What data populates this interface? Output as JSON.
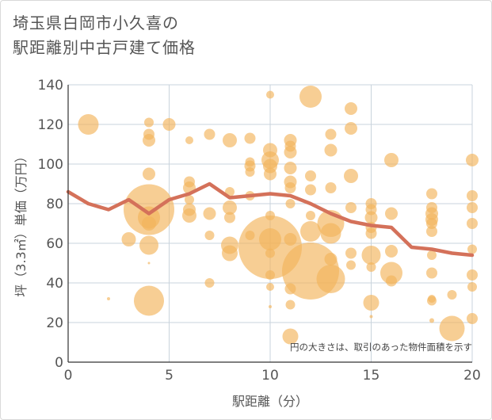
{
  "chart_data": {
    "type": "scatter",
    "title_line1": "埼玉県白岡市小久喜の",
    "title_line2": "駅距離別中古戸建て価格",
    "xlabel": "駅距離（分）",
    "ylabel": "坪（3.3㎡）単価（万円）",
    "note": "円の大きさは、取引のあった物件面積を示す",
    "xlim": [
      0,
      20
    ],
    "ylim": [
      0,
      140
    ],
    "x_ticks": [
      "0",
      "5",
      "10",
      "15",
      "20"
    ],
    "y_ticks": [
      "0",
      "20",
      "40",
      "60",
      "80",
      "100",
      "120",
      "140"
    ],
    "grid": true,
    "colors": {
      "bubble": "#f2b35a",
      "line": "#d4715a",
      "grid": "#c9d3dc",
      "axis": "#333333"
    },
    "bubbles": [
      {
        "x": 1,
        "y": 120,
        "r": 13
      },
      {
        "x": 2,
        "y": 32,
        "r": 2
      },
      {
        "x": 3,
        "y": 62,
        "r": 9
      },
      {
        "x": 4,
        "y": 121,
        "r": 6
      },
      {
        "x": 4,
        "y": 115,
        "r": 7
      },
      {
        "x": 4,
        "y": 112,
        "r": 8
      },
      {
        "x": 4,
        "y": 95,
        "r": 8
      },
      {
        "x": 4,
        "y": 77,
        "r": 32
      },
      {
        "x": 4,
        "y": 73,
        "r": 14
      },
      {
        "x": 4,
        "y": 70,
        "r": 9
      },
      {
        "x": 4,
        "y": 59,
        "r": 12
      },
      {
        "x": 4,
        "y": 50,
        "r": 1.5
      },
      {
        "x": 4,
        "y": 31,
        "r": 19
      },
      {
        "x": 5,
        "y": 120,
        "r": 8
      },
      {
        "x": 6,
        "y": 112,
        "r": 5
      },
      {
        "x": 6,
        "y": 91,
        "r": 7
      },
      {
        "x": 6,
        "y": 88,
        "r": 8
      },
      {
        "x": 6,
        "y": 82,
        "r": 6
      },
      {
        "x": 6,
        "y": 77,
        "r": 8
      },
      {
        "x": 6,
        "y": 74,
        "r": 9
      },
      {
        "x": 7,
        "y": 115,
        "r": 7
      },
      {
        "x": 7,
        "y": 75,
        "r": 8
      },
      {
        "x": 7,
        "y": 64,
        "r": 6
      },
      {
        "x": 7,
        "y": 40,
        "r": 6
      },
      {
        "x": 8,
        "y": 112,
        "r": 9
      },
      {
        "x": 8,
        "y": 86,
        "r": 6
      },
      {
        "x": 8,
        "y": 78,
        "r": 9
      },
      {
        "x": 8,
        "y": 73,
        "r": 7
      },
      {
        "x": 8,
        "y": 59,
        "r": 11
      },
      {
        "x": 8,
        "y": 55,
        "r": 10
      },
      {
        "x": 9,
        "y": 113,
        "r": 7
      },
      {
        "x": 9,
        "y": 101,
        "r": 6
      },
      {
        "x": 9,
        "y": 99,
        "r": 7
      },
      {
        "x": 9,
        "y": 96,
        "r": 6
      },
      {
        "x": 9,
        "y": 84,
        "r": 6
      },
      {
        "x": 9,
        "y": 64,
        "r": 6
      },
      {
        "x": 10,
        "y": 135,
        "r": 5
      },
      {
        "x": 10,
        "y": 107,
        "r": 9
      },
      {
        "x": 10,
        "y": 102,
        "r": 11
      },
      {
        "x": 10,
        "y": 99,
        "r": 9
      },
      {
        "x": 10,
        "y": 95,
        "r": 8
      },
      {
        "x": 10,
        "y": 74,
        "r": 6
      },
      {
        "x": 10,
        "y": 58,
        "r": 40
      },
      {
        "x": 10,
        "y": 62,
        "r": 14
      },
      {
        "x": 10,
        "y": 55,
        "r": 6
      },
      {
        "x": 10,
        "y": 44,
        "r": 6
      },
      {
        "x": 10,
        "y": 38,
        "r": 5
      },
      {
        "x": 10,
        "y": 28,
        "r": 2
      },
      {
        "x": 11,
        "y": 112,
        "r": 8
      },
      {
        "x": 11,
        "y": 109,
        "r": 7
      },
      {
        "x": 11,
        "y": 106,
        "r": 8
      },
      {
        "x": 11,
        "y": 98,
        "r": 8
      },
      {
        "x": 11,
        "y": 91,
        "r": 8
      },
      {
        "x": 11,
        "y": 88,
        "r": 7
      },
      {
        "x": 11,
        "y": 80,
        "r": 6
      },
      {
        "x": 11,
        "y": 62,
        "r": 8
      },
      {
        "x": 11,
        "y": 37,
        "r": 7
      },
      {
        "x": 11,
        "y": 29,
        "r": 6
      },
      {
        "x": 11,
        "y": 13,
        "r": 10
      },
      {
        "x": 12,
        "y": 134,
        "r": 14
      },
      {
        "x": 12,
        "y": 94,
        "r": 7
      },
      {
        "x": 12,
        "y": 87,
        "r": 7
      },
      {
        "x": 12,
        "y": 74,
        "r": 6
      },
      {
        "x": 12,
        "y": 66,
        "r": 13
      },
      {
        "x": 12,
        "y": 46,
        "r": 36
      },
      {
        "x": 13,
        "y": 115,
        "r": 7
      },
      {
        "x": 13,
        "y": 107,
        "r": 8
      },
      {
        "x": 13,
        "y": 88,
        "r": 7
      },
      {
        "x": 13,
        "y": 70,
        "r": 17
      },
      {
        "x": 13,
        "y": 65,
        "r": 13
      },
      {
        "x": 13,
        "y": 52,
        "r": 8
      },
      {
        "x": 13,
        "y": 42,
        "r": 18
      },
      {
        "x": 14,
        "y": 128,
        "r": 8
      },
      {
        "x": 14,
        "y": 118,
        "r": 8
      },
      {
        "x": 14,
        "y": 94,
        "r": 9
      },
      {
        "x": 14,
        "y": 78,
        "r": 7
      },
      {
        "x": 14,
        "y": 55,
        "r": 7
      },
      {
        "x": 14,
        "y": 49,
        "r": 6
      },
      {
        "x": 15,
        "y": 80,
        "r": 7
      },
      {
        "x": 15,
        "y": 77,
        "r": 7
      },
      {
        "x": 15,
        "y": 73,
        "r": 8
      },
      {
        "x": 15,
        "y": 68,
        "r": 7
      },
      {
        "x": 15,
        "y": 65,
        "r": 7
      },
      {
        "x": 15,
        "y": 54,
        "r": 12
      },
      {
        "x": 15,
        "y": 48,
        "r": 6
      },
      {
        "x": 15,
        "y": 30,
        "r": 10
      },
      {
        "x": 15,
        "y": 23,
        "r": 2
      },
      {
        "x": 16,
        "y": 102,
        "r": 9
      },
      {
        "x": 16,
        "y": 75,
        "r": 8
      },
      {
        "x": 16,
        "y": 56,
        "r": 8
      },
      {
        "x": 16,
        "y": 45,
        "r": 14
      },
      {
        "x": 16,
        "y": 41,
        "r": 7
      },
      {
        "x": 18,
        "y": 85,
        "r": 7
      },
      {
        "x": 18,
        "y": 78,
        "r": 7
      },
      {
        "x": 18,
        "y": 75,
        "r": 8
      },
      {
        "x": 18,
        "y": 72,
        "r": 8
      },
      {
        "x": 18,
        "y": 70,
        "r": 7
      },
      {
        "x": 18,
        "y": 66,
        "r": 7
      },
      {
        "x": 18,
        "y": 54,
        "r": 6
      },
      {
        "x": 18,
        "y": 45,
        "r": 7
      },
      {
        "x": 18,
        "y": 32,
        "r": 5
      },
      {
        "x": 18,
        "y": 31,
        "r": 6
      },
      {
        "x": 18,
        "y": 21,
        "r": 3
      },
      {
        "x": 19,
        "y": 34,
        "r": 6
      },
      {
        "x": 19,
        "y": 17,
        "r": 16
      },
      {
        "x": 20,
        "y": 102,
        "r": 8
      },
      {
        "x": 20,
        "y": 84,
        "r": 7
      },
      {
        "x": 20,
        "y": 78,
        "r": 7
      },
      {
        "x": 20,
        "y": 70,
        "r": 7
      },
      {
        "x": 20,
        "y": 57,
        "r": 6
      },
      {
        "x": 20,
        "y": 44,
        "r": 7
      },
      {
        "x": 20,
        "y": 38,
        "r": 6
      },
      {
        "x": 20,
        "y": 22,
        "r": 7
      }
    ],
    "line": {
      "x": [
        0,
        1,
        2,
        3,
        4,
        5,
        6,
        7,
        8,
        9,
        10,
        11,
        12,
        13,
        14,
        15,
        16,
        17,
        18,
        19,
        20
      ],
      "y": [
        86,
        80,
        77,
        82,
        75,
        82,
        85,
        90,
        83,
        84,
        85,
        84,
        80,
        75,
        71,
        69,
        68,
        58,
        57,
        55,
        54
      ]
    }
  }
}
